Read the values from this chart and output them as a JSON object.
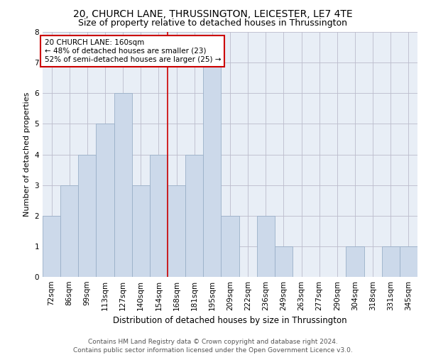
{
  "title": "20, CHURCH LANE, THRUSSINGTON, LEICESTER, LE7 4TE",
  "subtitle": "Size of property relative to detached houses in Thrussington",
  "xlabel": "Distribution of detached houses by size in Thrussington",
  "ylabel": "Number of detached properties",
  "bins": [
    "72sqm",
    "86sqm",
    "99sqm",
    "113sqm",
    "127sqm",
    "140sqm",
    "154sqm",
    "168sqm",
    "181sqm",
    "195sqm",
    "209sqm",
    "222sqm",
    "236sqm",
    "249sqm",
    "263sqm",
    "277sqm",
    "290sqm",
    "304sqm",
    "318sqm",
    "331sqm",
    "345sqm"
  ],
  "values": [
    2,
    3,
    4,
    5,
    6,
    3,
    4,
    3,
    4,
    7,
    2,
    0,
    2,
    1,
    0,
    0,
    0,
    1,
    0,
    1,
    1
  ],
  "bar_color": "#ccd9ea",
  "bar_edge_color": "#9ab0c8",
  "red_line_index": 7,
  "annotation_text": "20 CHURCH LANE: 160sqm\n← 48% of detached houses are smaller (23)\n52% of semi-detached houses are larger (25) →",
  "annotation_box_color": "#ffffff",
  "annotation_box_edge": "#cc0000",
  "red_line_color": "#cc0000",
  "ylim": [
    0,
    8
  ],
  "yticks": [
    0,
    1,
    2,
    3,
    4,
    5,
    6,
    7,
    8
  ],
  "grid_color": "#bbbbcc",
  "bg_color": "#e8eef6",
  "footer": "Contains HM Land Registry data © Crown copyright and database right 2024.\nContains public sector information licensed under the Open Government Licence v3.0.",
  "title_fontsize": 10,
  "subtitle_fontsize": 9,
  "xlabel_fontsize": 8.5,
  "ylabel_fontsize": 8,
  "tick_fontsize": 7.5,
  "footer_fontsize": 6.5,
  "annot_fontsize": 7.5
}
